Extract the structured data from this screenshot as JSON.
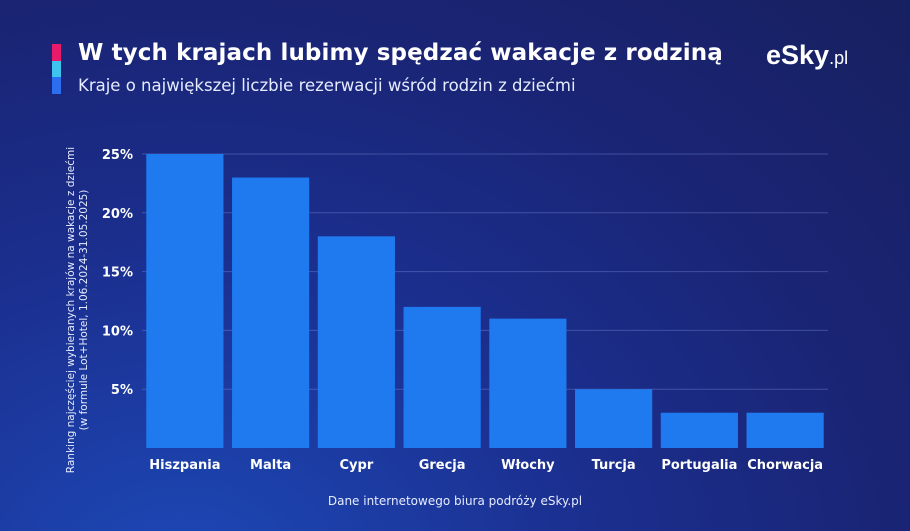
{
  "header": {
    "title": "W tych krajach lubimy spędzać wakacje z rodziną",
    "subtitle": "Kraje o największej liczbie rezerwacji wśród rodzin z dziećmi",
    "accent_colors": [
      "#e81a6a",
      "#3fc4f0",
      "#2b6ff0"
    ]
  },
  "logo": {
    "text": "eSky",
    "suffix": ".pl"
  },
  "footer": {
    "text": "Dane internetowego biura podróży eSky.pl"
  },
  "chart_data": {
    "type": "bar",
    "categories": [
      "Hiszpania",
      "Malta",
      "Cypr",
      "Grecja",
      "Włochy",
      "Turcja",
      "Portugalia",
      "Chorwacja"
    ],
    "values": [
      25,
      23,
      18,
      12,
      11,
      5,
      3,
      3
    ],
    "ylabel_line1": "Ranking najczęściej wybieranych krajów na wakacje z dziećmi",
    "ylabel_line2": "(w formule Lot+Hotel, 1.06.2024-31.05.2025)",
    "yticks": [
      5,
      10,
      15,
      20,
      25
    ],
    "ytick_suffix": "%",
    "ylim": [
      0,
      25
    ],
    "grid": true,
    "bar_color": "#1f7af0"
  }
}
